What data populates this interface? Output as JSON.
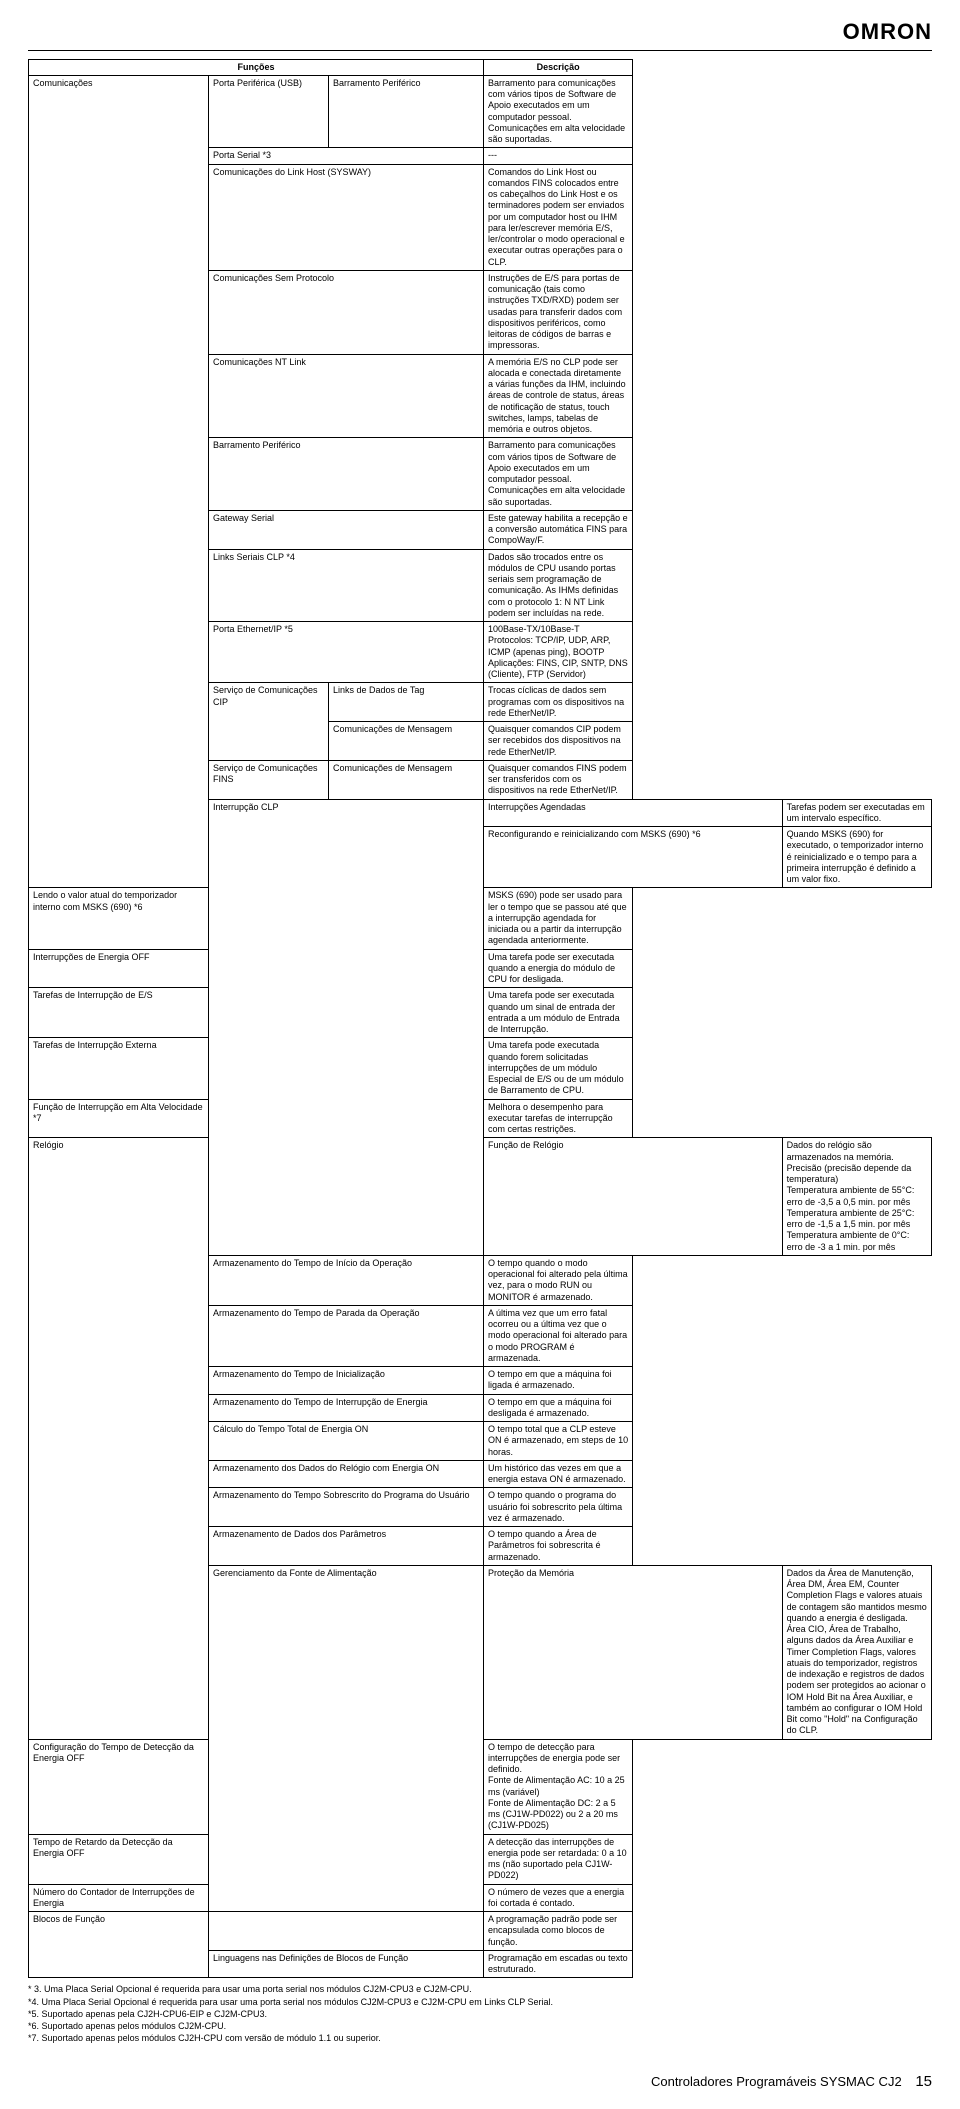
{
  "logo": "OMRON",
  "headers": {
    "funcoes": "Funções",
    "descricao": "Descrição"
  },
  "rows": [
    {
      "a": "Comunicações",
      "ar": 14,
      "b": "Porta Periférica (USB)",
      "c": "Barramento Periférico",
      "d": "Barramento para comunicações com vários tipos de Software de Apoio executados em um computador pessoal. Comunicações em alta velocidade são suportadas."
    },
    {
      "b": "Porta Serial *3",
      "bc": 2,
      "d": "---"
    },
    {
      "b": "Comunicações do Link Host (SYSWAY)",
      "bc": 2,
      "d": "Comandos do Link Host ou comandos FINS colocados entre os cabeçalhos do Link Host e os terminadores podem ser enviados por um computador host ou IHM para ler/escrever memória E/S, ler/controlar o modo operacional e executar outras operações para o CLP."
    },
    {
      "b": "Comunicações Sem Protocolo",
      "bc": 2,
      "d": "Instruções de E/S para portas de comunicação (tais como instruções TXD/RXD) podem ser usadas para transferir dados com dispositivos periféricos, como leitoras de códigos de barras e impressoras."
    },
    {
      "b": "Comunicações NT Link",
      "bc": 2,
      "d": "A memória E/S no CLP pode ser alocada e conectada diretamente a várias funções da IHM, incluindo áreas de controle de status, áreas de notificação de status, touch switches, lamps, tabelas de memória e outros objetos."
    },
    {
      "b": "Barramento Periférico",
      "bc": 2,
      "d": "Barramento para comunicações com vários tipos de Software de Apoio executados em um computador pessoal. Comunicações em alta velocidade são suportadas."
    },
    {
      "b": "Gateway Serial",
      "bc": 2,
      "d": "Este gateway habilita a recepção e a conversão automática FINS para CompoWay/F."
    },
    {
      "b": "Links Seriais CLP *4",
      "bc": 2,
      "d": "Dados são trocados entre os módulos de CPU usando portas seriais sem programação de comunicação. As IHMs definidas com o protocolo 1: N NT Link podem ser incluídas na rede."
    },
    {
      "b": "Porta Ethernet/IP *5",
      "bc": 2,
      "d": "100Base-TX/10Base-T\nProtocolos: TCP/IP, UDP, ARP, ICMP (apenas ping), BOOTP\nAplicações: FINS, CIP, SNTP, DNS (Cliente), FTP (Servidor)"
    },
    {
      "skipA": true,
      "b": "Serviço de Comunicações CIP",
      "br": 2,
      "c": "Links de Dados de Tag",
      "d": "Trocas cíclicas de dados sem programas com os dispositivos na rede EtherNet/IP."
    },
    {
      "skipA": true,
      "c": "Comunicações de Mensagem",
      "d": "Quaisquer comandos CIP podem ser recebidos dos dispositivos na rede EtherNet/IP."
    },
    {
      "skipA": true,
      "b": "Serviço de Comunicações FINS",
      "c": "Comunicações de Mensagem",
      "d": "Quaisquer comandos FINS podem ser transferidos com os dispositivos na rede EtherNet/IP."
    },
    {
      "a": "Interrupção CLP",
      "ar": 8,
      "b": "Interrupções Agendadas",
      "bc": 2,
      "d": "Tarefas podem ser executadas em um intervalo específico."
    },
    {
      "skipA": true,
      "b": "Reconfigurando e reinicializando com MSKS (690) *6",
      "bc": 2,
      "d": "Quando MSKS (690) for executado, o temporizador interno é reinicializado e o tempo para a primeira interrupção é definido a um valor fixo."
    },
    {
      "skipA": true,
      "b": "Lendo o valor atual do temporizador interno com MSKS (690) *6",
      "bc": 2,
      "d": "MSKS (690) pode ser usado para ler o tempo que se passou até que a interrupção agendada for iniciada ou a partir da interrupção agendada anteriormente."
    },
    {
      "b": "Interrupções de Energia OFF",
      "bc": 2,
      "d": "Uma tarefa pode ser executada quando a energia do módulo de CPU for desligada."
    },
    {
      "b": "Tarefas de Interrupção de E/S",
      "bc": 2,
      "d": "Uma tarefa pode ser executada quando um sinal de entrada der entrada a um módulo de Entrada de Interrupção."
    },
    {
      "b": "Tarefas de Interrupção Externa",
      "bc": 2,
      "d": "Uma tarefa pode executada quando forem solicitadas interrupções de um módulo Especial de E/S ou de um módulo de Barramento de CPU."
    },
    {
      "b": "Função de Interrupção em Alta Velocidade *7",
      "bc": 2,
      "d": "Melhora o desempenho para executar tarefas de interrupção com certas restrições."
    },
    {
      "a": "Relógio",
      "ar": 10,
      "b": "Função de Relógio",
      "bc": 2,
      "d": "Dados do relógio são armazenados na memória.\nPrecisão (precisão depende da temperatura)\nTemperatura ambiente de 55°C: erro de -3,5 a 0,5 min. por mês\nTemperatura ambiente de 25°C: erro de -1,5 a 1,5 min. por mês\nTemperatura ambiente de 0°C: erro de -3 a 1 min. por mês"
    },
    {
      "b": "Armazenamento do Tempo de Início da Operação",
      "bc": 2,
      "d": "O tempo quando o modo operacional foi alterado pela última vez, para o modo RUN ou MONITOR é armazenado."
    },
    {
      "b": "Armazenamento do Tempo de Parada da Operação",
      "bc": 2,
      "d": "A última vez que um erro fatal ocorreu ou a última vez que o modo operacional foi alterado para o modo PROGRAM é armazenada."
    },
    {
      "b": "Armazenamento do Tempo de Inicialização",
      "bc": 2,
      "d": "O tempo em que a máquina foi ligada é armazenado."
    },
    {
      "b": "Armazenamento do Tempo de Interrupção de Energia",
      "bc": 2,
      "d": "O tempo em que a máquina foi desligada é armazenado."
    },
    {
      "b": "Cálculo do Tempo Total de Energia ON",
      "bc": 2,
      "d": "O tempo total que a CLP esteve ON é armazenado, em steps de 10 horas."
    },
    {
      "b": "Armazenamento dos Dados do Relógio com Energia ON",
      "bc": 2,
      "d": "Um histórico das vezes em que a energia estava ON é armazenado."
    },
    {
      "b": "Armazenamento do Tempo Sobrescrito do Programa do Usuário",
      "bc": 2,
      "d": "O tempo quando o programa do usuário foi sobrescrito pela última vez é armazenado."
    },
    {
      "b": "Armazenamento de Dados dos Parâmetros",
      "bc": 2,
      "d": "O tempo quando a Área de Parâmetros foi sobrescrita é armazenado."
    },
    {
      "a": "Gerenciamento da Fonte de Alimentação",
      "ar": 4,
      "b": "Proteção da Memória",
      "bc": 2,
      "d": "Dados da Área de Manutenção, Área DM, Área EM, Counter Completion Flags e valores atuais de contagem são mantidos mesmo quando a energia é desligada. Área CIO, Área de Trabalho, alguns dados da Área Auxiliar e Timer Completion Flags, valores atuais do temporizador, registros de indexação e registros de dados podem ser protegidos ao acionar o IOM Hold Bit na Área Auxiliar, e também ao configurar o IOM Hold Bit como \"Hold\" na Configuração do CLP."
    },
    {
      "b": "Configuração do Tempo de Detecção da Energia OFF",
      "bc": 2,
      "d": "O tempo de detecção para interrupções de energia pode ser definido.\nFonte de Alimentação AC: 10 a 25 ms (variável)\nFonte de Alimentação DC: 2 a 5 ms (CJ1W-PD022) ou 2 a 20 ms (CJ1W-PD025)"
    },
    {
      "b": "Tempo de Retardo da Detecção da Energia OFF",
      "bc": 2,
      "d": "A detecção das interrupções de energia pode ser retardada: 0 a 10 ms (não suportado pela CJ1W-PD022)"
    },
    {
      "b": "Número do Contador de Interrupções de Energia",
      "bc": 2,
      "d": "O número de vezes que a energia foi cortada é contado."
    },
    {
      "a": "Blocos de Função",
      "ar": 2,
      "bc": 2,
      "b": "",
      "d": "A programação padrão pode ser encapsulada como blocos de função."
    },
    {
      "b": "Linguagens nas Definições de Blocos de Função",
      "bc": 2,
      "d": "Programação em escadas ou texto estruturado."
    }
  ],
  "firstDesc": "---",
  "notes": [
    "* 3.   Uma Placa Serial Opcional é requerida para usar uma porta serial nos módulos CJ2M-CPU3 e CJ2M-CPU.",
    "*4.    Uma Placa Serial Opcional é requerida para usar uma porta serial nos módulos CJ2M-CPU3 e CJ2M-CPU em Links CLP Serial.",
    "*5.    Suportado apenas pela CJ2H-CPU6-EIP e CJ2M-CPU3.",
    "*6.    Suportado apenas pelos módulos CJ2M-CPU.",
    "*7.    Suportado apenas pelos módulos CJ2H-CPU com versão de módulo 1.1 ou superior."
  ],
  "footer": {
    "text": "Controladores Programáveis SYSMAC CJ2",
    "page": "15"
  }
}
